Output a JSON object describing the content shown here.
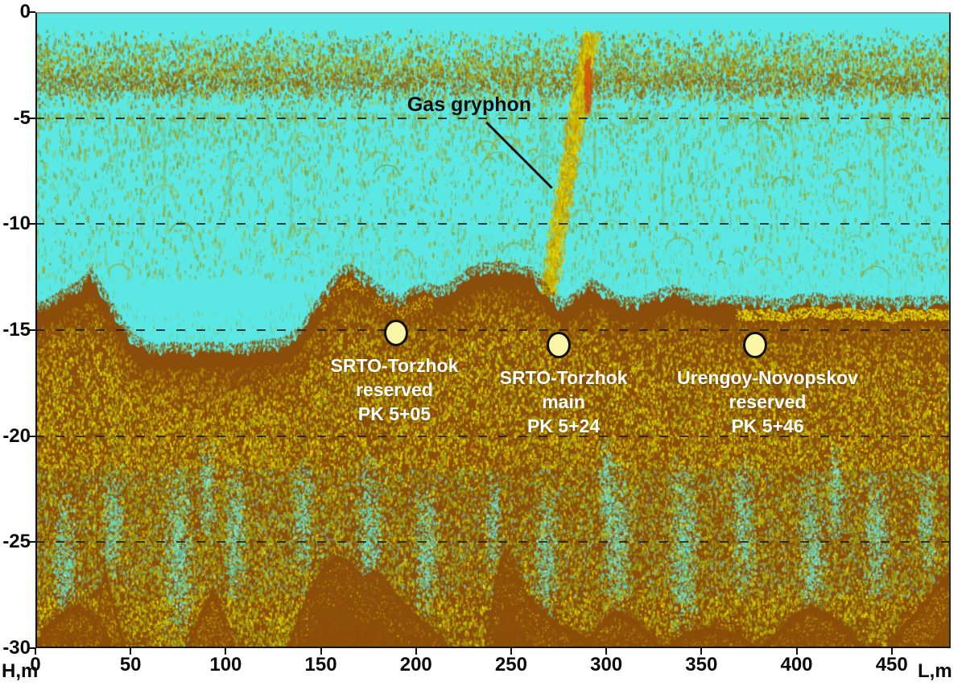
{
  "figure": {
    "background": "#FFFFFF"
  },
  "chart_data": {
    "type": "heatmap",
    "subtype": "sub-bottom sonar profile (echogram) with pipeline crossing annotations",
    "title": "",
    "axes": {
      "xlabel": "L,m",
      "ylabel": "H,m",
      "xlim": [
        0,
        481
      ],
      "ylim": [
        -30,
        0
      ],
      "x_ticks": [
        0,
        50,
        100,
        150,
        200,
        250,
        300,
        350,
        400,
        450
      ],
      "y_ticks": [
        0,
        -5,
        -10,
        -15,
        -20,
        -25,
        -30
      ],
      "grid_depths": [
        -5,
        -10,
        -15,
        -20,
        -25
      ],
      "grid_on": true
    },
    "annotations": {
      "gas_gryphon": {
        "label": "Gas gryphon",
        "text_L": 228,
        "text_H": -4.4,
        "line": {
          "x1": 237,
          "h1": -5.2,
          "x2": 271.5,
          "h2": -8.3
        }
      }
    },
    "pipelines": [
      {
        "lines": [
          "SRTO-Torzhok",
          "reserved",
          "PK 5+05"
        ],
        "L": 189.5,
        "H": -15.1
      },
      {
        "lines": [
          "SRTO-Torzhok",
          "main",
          "PK 5+24"
        ],
        "L": 275,
        "H": -15.7
      },
      {
        "lines": [
          "Urengoy-Novopskov",
          "reserved",
          "PK 5+46"
        ],
        "L": 378,
        "H": -15.7
      }
    ],
    "surface_layer": {
      "H_top": -0.7,
      "H_bottom": -4.7,
      "dense_H_center": -3.3
    },
    "plume": {
      "base_L": 269,
      "base_H": -13.2,
      "top_L": 291,
      "top_H": -1.0,
      "width_m": 10,
      "core_L": 290,
      "core_H": -3.4
    },
    "seabed_profile": [
      [
        0,
        -14.2
      ],
      [
        6,
        -14.0
      ],
      [
        12,
        -13.6
      ],
      [
        18,
        -13.3
      ],
      [
        24,
        -13.0
      ],
      [
        29,
        -12.5
      ],
      [
        32,
        -12.9
      ],
      [
        36,
        -13.5
      ],
      [
        41,
        -14.3
      ],
      [
        47,
        -15.1
      ],
      [
        54,
        -15.8
      ],
      [
        62,
        -16.1
      ],
      [
        72,
        -16.0
      ],
      [
        82,
        -16.1
      ],
      [
        92,
        -16.0
      ],
      [
        102,
        -16.1
      ],
      [
        112,
        -16.0
      ],
      [
        122,
        -15.9
      ],
      [
        130,
        -15.8
      ],
      [
        138,
        -15.3
      ],
      [
        145,
        -14.4
      ],
      [
        151,
        -13.5
      ],
      [
        157,
        -12.9
      ],
      [
        162,
        -12.3
      ],
      [
        167,
        -12.4
      ],
      [
        172,
        -12.7
      ],
      [
        179,
        -13.2
      ],
      [
        186,
        -13.6
      ],
      [
        192,
        -13.8
      ],
      [
        198,
        -13.4
      ],
      [
        205,
        -13.2
      ],
      [
        212,
        -13.4
      ],
      [
        219,
        -13.1
      ],
      [
        226,
        -12.6
      ],
      [
        233,
        -12.3
      ],
      [
        242,
        -12.2
      ],
      [
        252,
        -12.3
      ],
      [
        260,
        -12.5
      ],
      [
        266,
        -13.0
      ],
      [
        272,
        -13.7
      ],
      [
        278,
        -14.0
      ],
      [
        285,
        -13.5
      ],
      [
        292,
        -13.0
      ],
      [
        298,
        -13.3
      ],
      [
        305,
        -13.8
      ],
      [
        312,
        -13.9
      ],
      [
        320,
        -13.8
      ],
      [
        328,
        -13.5
      ],
      [
        336,
        -13.3
      ],
      [
        344,
        -13.6
      ],
      [
        352,
        -13.8
      ],
      [
        360,
        -13.9
      ],
      [
        368,
        -13.8
      ],
      [
        376,
        -13.9
      ],
      [
        384,
        -13.8
      ],
      [
        392,
        -14.0
      ],
      [
        400,
        -13.8
      ],
      [
        410,
        -13.7
      ],
      [
        418,
        -13.9
      ],
      [
        426,
        -13.7
      ],
      [
        434,
        -13.9
      ],
      [
        442,
        -13.8
      ],
      [
        450,
        -14.0
      ],
      [
        458,
        -13.8
      ],
      [
        466,
        -13.9
      ],
      [
        473,
        -13.8
      ],
      [
        481,
        -13.9
      ]
    ],
    "deep_mounds": [
      [
        [
          0,
          -30
        ],
        [
          4,
          -29.2
        ],
        [
          10,
          -28.6
        ],
        [
          17,
          -28.1
        ],
        [
          24,
          -28.0
        ],
        [
          31,
          -28.5
        ],
        [
          38,
          -29.3
        ],
        [
          44,
          -30
        ]
      ],
      [
        [
          30,
          -30
        ],
        [
          34,
          -27.6
        ],
        [
          36,
          -26.4
        ],
        [
          39,
          -27.4
        ],
        [
          43,
          -28.8
        ],
        [
          47,
          -30
        ]
      ],
      [
        [
          80,
          -30
        ],
        [
          87,
          -28.4
        ],
        [
          93,
          -27.3
        ],
        [
          99,
          -28.6
        ],
        [
          105,
          -30
        ]
      ],
      [
        [
          132,
          -30
        ],
        [
          142,
          -27.6
        ],
        [
          150,
          -26.3
        ],
        [
          158,
          -25.6
        ],
        [
          164,
          -25.8
        ],
        [
          172,
          -26.6
        ],
        [
          180,
          -26.3
        ],
        [
          188,
          -27.2
        ],
        [
          198,
          -28.3
        ],
        [
          208,
          -29.0
        ],
        [
          218,
          -30
        ]
      ],
      [
        [
          236,
          -30
        ],
        [
          242,
          -26.8
        ],
        [
          247,
          -25.2
        ],
        [
          252,
          -26.2
        ],
        [
          258,
          -27.4
        ],
        [
          266,
          -28.2
        ],
        [
          274,
          -28.8
        ],
        [
          284,
          -29.2
        ],
        [
          296,
          -30
        ]
      ],
      [
        [
          288,
          -30
        ],
        [
          296,
          -28.9
        ],
        [
          304,
          -28.2
        ],
        [
          313,
          -28.5
        ],
        [
          322,
          -29.3
        ],
        [
          330,
          -30
        ]
      ],
      [
        [
          330,
          -30
        ],
        [
          342,
          -29.2
        ],
        [
          356,
          -29.0
        ],
        [
          370,
          -29.3
        ],
        [
          380,
          -30
        ]
      ],
      [
        [
          380,
          -30
        ],
        [
          390,
          -29.2
        ],
        [
          398,
          -28.4
        ],
        [
          408,
          -28.0
        ],
        [
          418,
          -28.4
        ],
        [
          428,
          -29.3
        ],
        [
          436,
          -30
        ]
      ],
      [
        [
          448,
          -30
        ],
        [
          456,
          -28.9
        ],
        [
          464,
          -28.2
        ],
        [
          472,
          -27.2
        ],
        [
          481,
          -26.3
        ],
        [
          481,
          -30
        ]
      ]
    ],
    "cyan_patches": [
      [
        15,
        -26,
        7
      ],
      [
        40,
        -24,
        6
      ],
      [
        75,
        -25.5,
        9
      ],
      [
        105,
        -24.5,
        7
      ],
      [
        140,
        -23.8,
        6
      ],
      [
        175,
        -24.5,
        8
      ],
      [
        205,
        -25.5,
        7
      ],
      [
        240,
        -23.8,
        5
      ],
      [
        268,
        -25.8,
        7
      ],
      [
        305,
        -24.8,
        8
      ],
      [
        340,
        -25.2,
        9
      ],
      [
        372,
        -24.3,
        7
      ],
      [
        408,
        -25.3,
        8
      ],
      [
        442,
        -24.6,
        7
      ],
      [
        468,
        -23.8,
        5
      ],
      [
        90,
        -22.5,
        5
      ],
      [
        300,
        -22.3,
        5
      ],
      [
        420,
        -22.6,
        5
      ]
    ],
    "colors": {
      "water": "#5BE8E4",
      "sediment_brown": "#8B4D0A",
      "speckle_yellow": "#D8CC00",
      "speckle_olive": "#8F8D1E",
      "marker_fill": "#FAF6A6",
      "marker_stroke": "#111111",
      "grid": "#1C1C1C",
      "label_white": "#FFFFFF",
      "annotation_black": "#111111"
    }
  }
}
